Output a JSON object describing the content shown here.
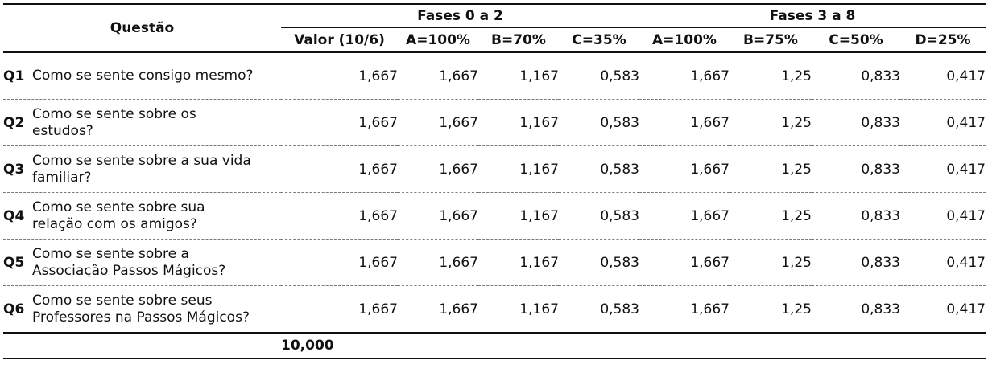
{
  "header": {
    "question_label": "Questão",
    "group1": "Fases 0 a 2",
    "group2": "Fases 3 a 8",
    "columns": [
      "Valor (10/6)",
      "A=100%",
      "B=70%",
      "C=35%",
      "A=100%",
      "B=75%",
      "C=50%",
      "D=25%"
    ]
  },
  "rows": [
    {
      "id": "Q1",
      "text": "Como se sente consigo mesmo?",
      "values": [
        "1,667",
        "1,667",
        "1,167",
        "0,583",
        "1,667",
        "1,25",
        "0,833",
        "0,417"
      ]
    },
    {
      "id": "Q2",
      "text": "Como se sente sobre os estudos?",
      "values": [
        "1,667",
        "1,667",
        "1,167",
        "0,583",
        "1,667",
        "1,25",
        "0,833",
        "0,417"
      ]
    },
    {
      "id": "Q3",
      "text": "Como se sente sobre a sua vida familiar?",
      "values": [
        "1,667",
        "1,667",
        "1,167",
        "0,583",
        "1,667",
        "1,25",
        "0,833",
        "0,417"
      ]
    },
    {
      "id": "Q4",
      "text": "Como se sente sobre sua relação com os amigos?",
      "values": [
        "1,667",
        "1,667",
        "1,167",
        "0,583",
        "1,667",
        "1,25",
        "0,833",
        "0,417"
      ]
    },
    {
      "id": "Q5",
      "text": "Como se sente sobre a Associação Passos Mágicos?",
      "values": [
        "1,667",
        "1,667",
        "1,167",
        "0,583",
        "1,667",
        "1,25",
        "0,833",
        "0,417"
      ]
    },
    {
      "id": "Q6",
      "text": "Como se sente sobre seus Professores na Passos Mágicos?",
      "values": [
        "1,667",
        "1,667",
        "1,167",
        "0,583",
        "1,667",
        "1,25",
        "0,833",
        "0,417"
      ]
    }
  ],
  "total": "10,000"
}
